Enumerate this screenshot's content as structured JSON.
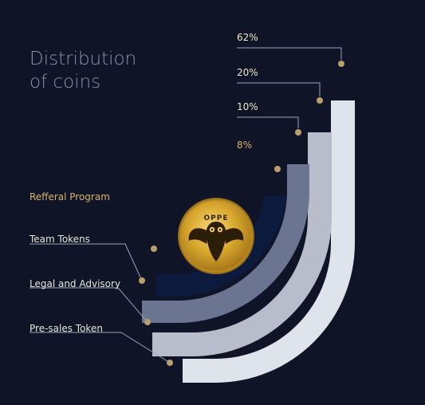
{
  "title": {
    "line1": "Distribution",
    "line2": "of coins"
  },
  "colors": {
    "background": "#0f1527",
    "accent_gold": "#d8b46a",
    "leader_line": "#9aa3b8",
    "series": [
      "#dfe3ec",
      "#b8bccb",
      "#6b7490",
      "#0c1a3d"
    ]
  },
  "coin": {
    "icon": "owl-coin-logo-icon",
    "text": "OPPE"
  },
  "chart_data": {
    "type": "pie",
    "series": [
      {
        "name": "Pre-sales Token",
        "value": 62,
        "label": "62%"
      },
      {
        "name": "Legal and Advisory",
        "value": 20,
        "label": "20%"
      },
      {
        "name": "Team Tokens",
        "value": 10,
        "label": "10%"
      },
      {
        "name": "Refferal Program",
        "value": 8,
        "label": "8%"
      }
    ]
  }
}
